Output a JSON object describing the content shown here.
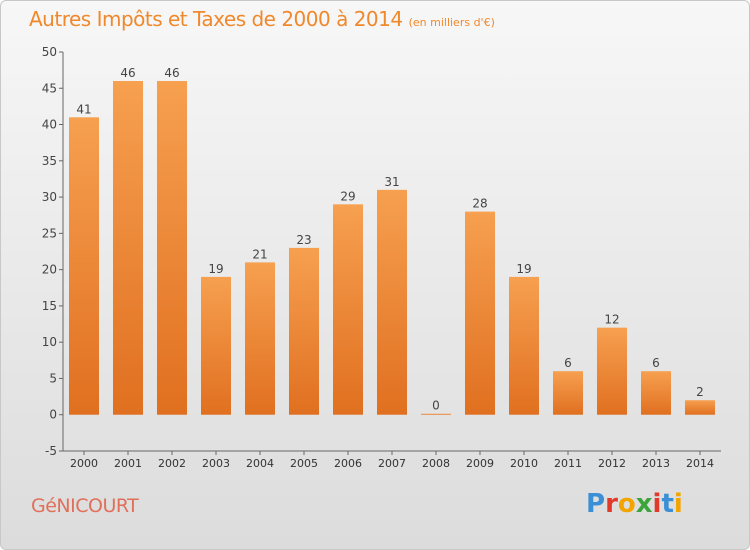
{
  "header": {
    "title": "Autres Impôts et Taxes de 2000 à 2014",
    "unit": "(en milliers d'€)"
  },
  "footer": {
    "city": "GéNICOURT",
    "logo": "Proxiti"
  },
  "colors": {
    "bar": "#f0882c",
    "title": "#f0882c",
    "city": "#e0705a"
  },
  "chart_data": {
    "type": "bar",
    "categories": [
      "2000",
      "2001",
      "2002",
      "2003",
      "2004",
      "2005",
      "2006",
      "2007",
      "2008",
      "2009",
      "2010",
      "2011",
      "2012",
      "2013",
      "2014"
    ],
    "values": [
      41,
      46,
      46,
      19,
      21,
      23,
      29,
      31,
      0,
      28,
      19,
      6,
      12,
      6,
      2
    ],
    "data_labels": [
      "41",
      "46",
      "46",
      "19",
      "21",
      "23",
      "29",
      "31",
      "0",
      "28",
      "19",
      "6",
      "12",
      "6",
      "2"
    ],
    "ylim": [
      -5,
      50
    ],
    "yticks": [
      -5,
      0,
      5,
      10,
      15,
      20,
      25,
      30,
      35,
      40,
      45,
      50
    ],
    "grid": false
  }
}
